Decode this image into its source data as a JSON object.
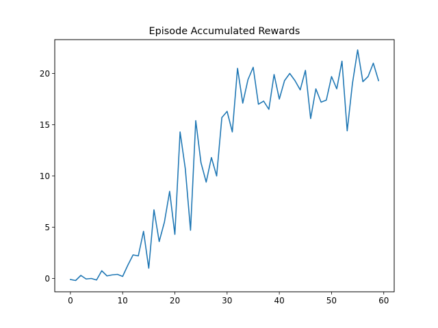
{
  "chart_data": {
    "type": "line",
    "title": "Episode Accumulated Rewards",
    "xlabel": "",
    "ylabel": "",
    "xlim": [
      -3,
      62
    ],
    "ylim": [
      -1.3,
      23.3
    ],
    "xticks": [
      0,
      10,
      20,
      30,
      40,
      50,
      60
    ],
    "yticks": [
      0,
      5,
      10,
      15,
      20
    ],
    "grid": false,
    "line_color": "#1f77b4",
    "series": [
      {
        "x": [
          0,
          1,
          2,
          3,
          4,
          5,
          6,
          7,
          8,
          9,
          10,
          11,
          12,
          13,
          14,
          15,
          16,
          17,
          18,
          19,
          20,
          21,
          22,
          23,
          24,
          25,
          26,
          27,
          28,
          29,
          30,
          31,
          32,
          33,
          34,
          35,
          36,
          37,
          38,
          39,
          40,
          41,
          42,
          43,
          44,
          45,
          46,
          47,
          48,
          49,
          50,
          51,
          52,
          53,
          54,
          55,
          56,
          57,
          58,
          59
        ],
        "values": [
          -0.1,
          -0.2,
          0.3,
          -0.05,
          0.0,
          -0.15,
          0.75,
          0.25,
          0.35,
          0.4,
          0.2,
          1.3,
          2.3,
          2.2,
          4.6,
          1.0,
          6.7,
          3.6,
          5.5,
          8.5,
          4.3,
          14.3,
          10.7,
          4.7,
          15.4,
          11.3,
          9.4,
          11.8,
          10.0,
          15.7,
          16.3,
          14.3,
          20.5,
          17.1,
          19.4,
          20.6,
          17.0,
          17.3,
          16.5,
          19.9,
          17.5,
          19.3,
          20.0,
          19.3,
          18.4,
          20.3,
          15.6,
          18.5,
          17.2,
          17.4,
          19.7,
          18.5,
          21.2,
          14.4,
          19.0,
          22.3,
          19.2,
          19.7,
          21.0,
          19.3
        ]
      }
    ]
  }
}
